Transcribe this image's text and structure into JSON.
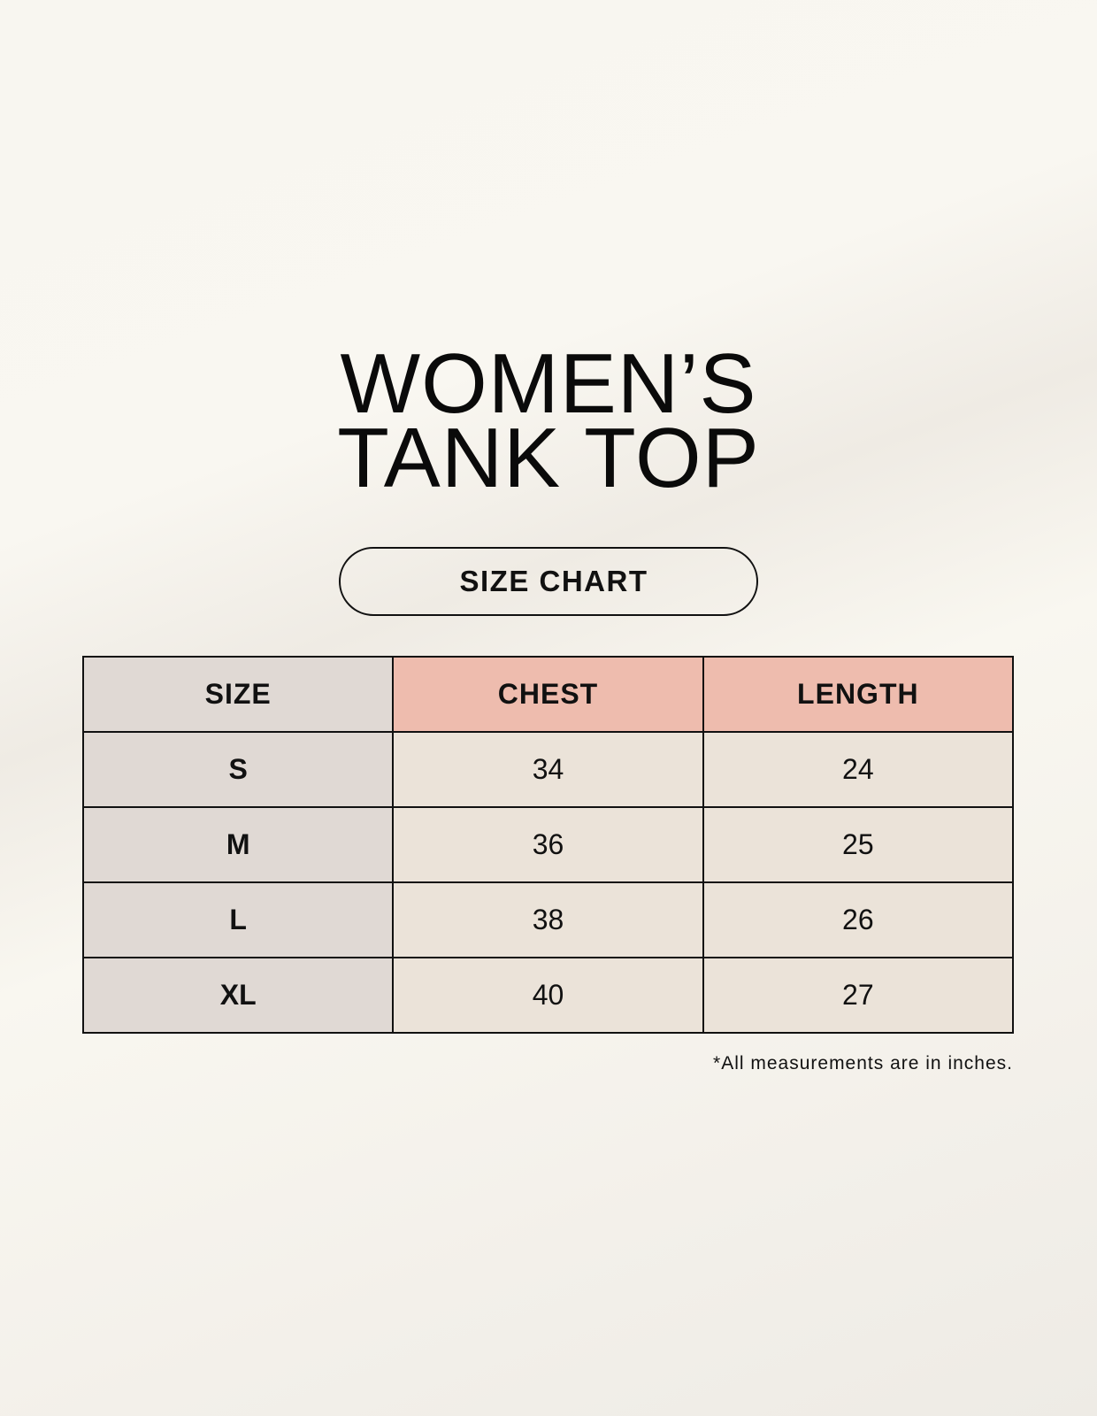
{
  "title": {
    "line1": "WOMEN’S",
    "line2": "TANK TOP"
  },
  "badge": "SIZE CHART",
  "table": {
    "headers": [
      "SIZE",
      "CHEST",
      "LENGTH"
    ],
    "rows": [
      [
        "S",
        "34",
        "24"
      ],
      [
        "M",
        "36",
        "25"
      ],
      [
        "L",
        "38",
        "26"
      ],
      [
        "XL",
        "40",
        "27"
      ]
    ]
  },
  "footnote": "*All measurements are in inches.",
  "colors": {
    "size_column": "#e0d9d4",
    "header_accent": "#eebcae",
    "cell": "#ebe3d9"
  }
}
